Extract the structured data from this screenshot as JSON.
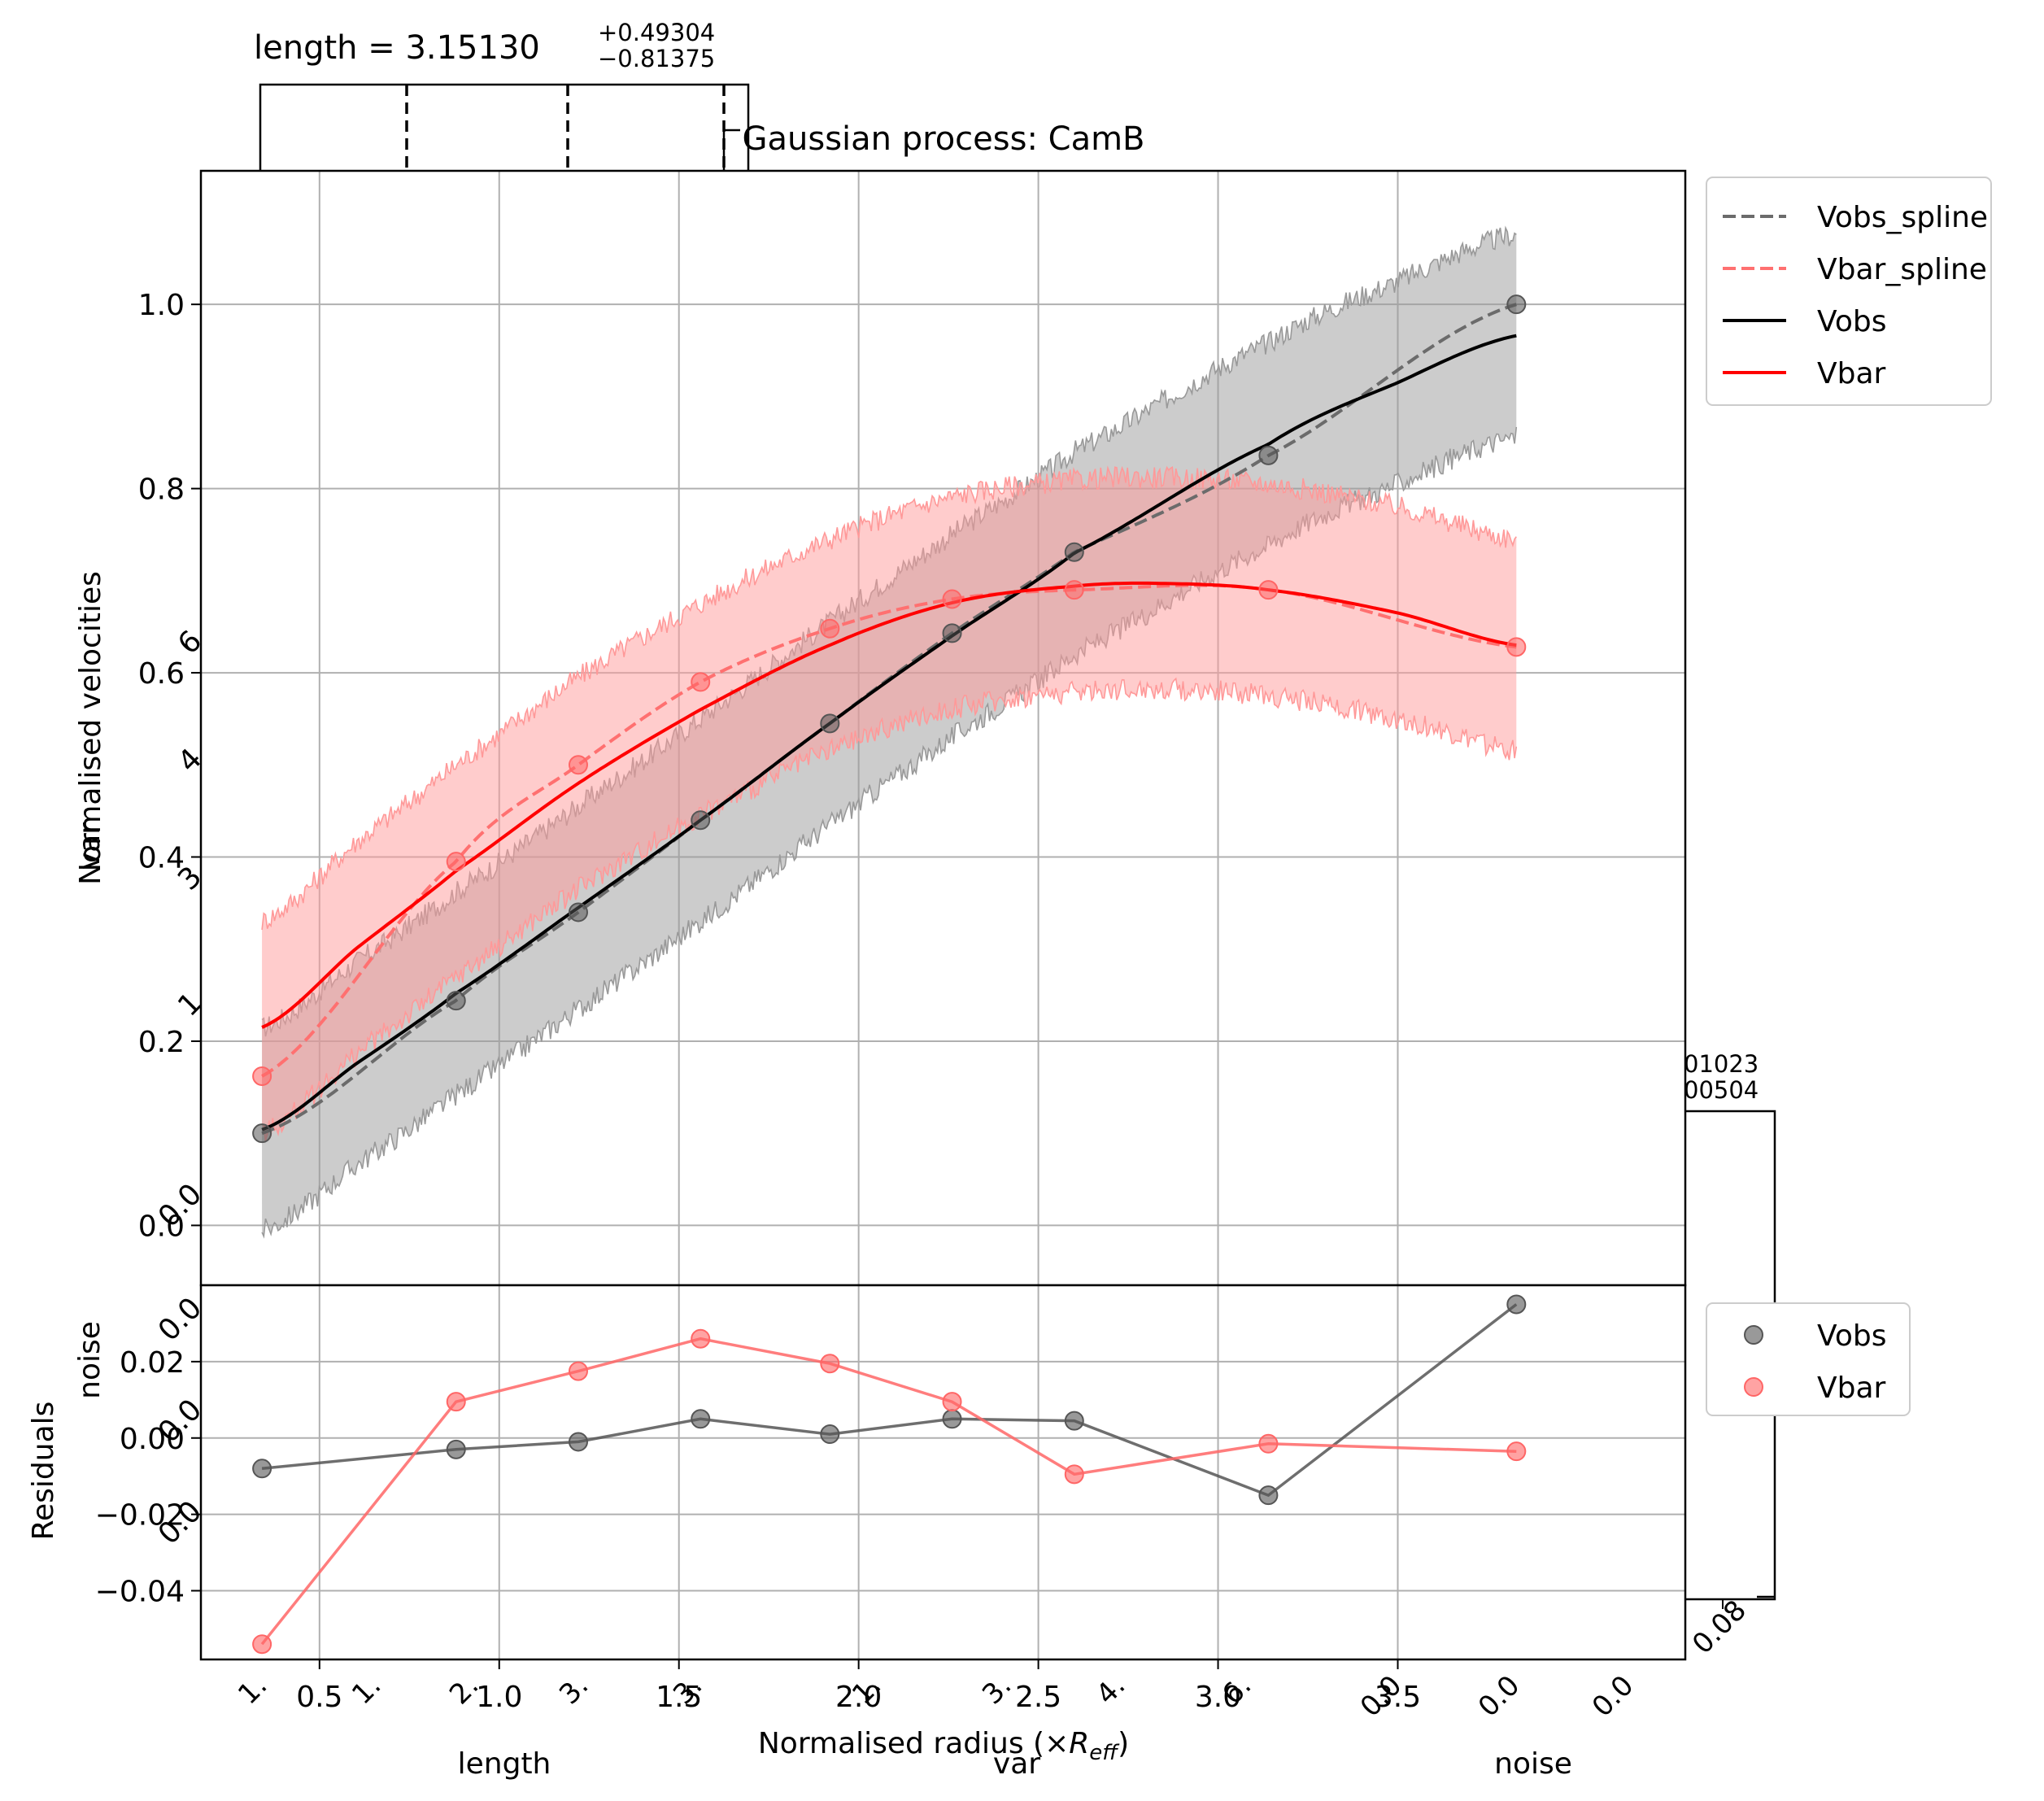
{
  "chart_data": [
    {
      "type": "line",
      "title": "Gaussian process: CamB",
      "xlabel": "",
      "ylabel": "Normalised velocities",
      "xlim": [
        0.17,
        4.3
      ],
      "ylim": [
        -0.065,
        1.145
      ],
      "x_ticks": [
        0.5,
        1.0,
        1.5,
        2.0,
        2.5,
        3.0,
        3.5
      ],
      "y_ticks": [
        0.0,
        0.2,
        0.4,
        0.6,
        0.8,
        1.0
      ],
      "y_tick_labels": [
        "0.0",
        "0.2",
        "0.4",
        "0.6",
        "0.8",
        "1.0"
      ],
      "grid": true,
      "legend_position": "outside-top-right",
      "points_x": [
        0.34,
        0.88,
        1.22,
        1.56,
        1.92,
        2.26,
        2.6,
        3.14,
        3.83
      ],
      "series": [
        {
          "name": "Vobs_spline",
          "style": "dashed",
          "color": "#6b6b6b",
          "values": [
            0.1,
            0.244,
            0.34,
            0.44,
            0.545,
            0.643,
            0.731,
            0.836,
            1.0
          ]
        },
        {
          "name": "Vbar_spline",
          "style": "dashed",
          "color": "#ff7070",
          "values": [
            0.162,
            0.395,
            0.5,
            0.59,
            0.648,
            0.68,
            0.69,
            0.69,
            0.628
          ]
        },
        {
          "name": "Vobs",
          "style": "solid",
          "color": "#000000",
          "x": [
            0.34,
            0.6,
            0.88,
            1.22,
            1.56,
            1.92,
            2.26,
            2.6,
            3.14,
            3.5,
            3.83
          ],
          "values": [
            0.104,
            0.175,
            0.252,
            0.345,
            0.44,
            0.545,
            0.64,
            0.73,
            0.848,
            0.915,
            0.966
          ]
        },
        {
          "name": "Vbar",
          "style": "solid",
          "color": "#ff0000",
          "x": [
            0.34,
            0.6,
            0.88,
            1.22,
            1.56,
            1.92,
            2.26,
            2.6,
            2.85,
            3.14,
            3.5,
            3.83
          ],
          "values": [
            0.215,
            0.3,
            0.385,
            0.48,
            0.56,
            0.63,
            0.676,
            0.694,
            0.697,
            0.69,
            0.665,
            0.63
          ]
        }
      ],
      "bands": [
        {
          "series": "Vobs",
          "color": "#999999",
          "lower_offset": -0.11,
          "upper_offset": 0.11
        },
        {
          "series": "Vbar",
          "color": "#ff9999",
          "lower_offset": -0.115,
          "upper_offset": 0.115
        }
      ]
    },
    {
      "type": "line",
      "xlabel": "Normalised radius (×R_eff)",
      "ylabel": "Residuals",
      "xlim": [
        0.17,
        4.3
      ],
      "ylim": [
        -0.058,
        0.04
      ],
      "y_ticks": [
        -0.04,
        -0.02,
        0.0,
        0.02
      ],
      "y_tick_labels": [
        "−0.04",
        "−0.02",
        "0.00",
        "0.02"
      ],
      "x_tick_labels": [
        "0.5",
        "1.0",
        "1.5",
        "2.0",
        "2.5",
        "3.0",
        "3.5"
      ],
      "grid": true,
      "legend_position": "outside-right",
      "x": [
        0.34,
        0.88,
        1.22,
        1.56,
        1.92,
        2.26,
        2.6,
        3.14,
        3.83
      ],
      "series": [
        {
          "name": "Vobs",
          "color": "#555555",
          "values": [
            -0.008,
            -0.003,
            -0.001,
            0.005,
            0.001,
            0.005,
            0.0045,
            -0.015,
            0.035
          ]
        },
        {
          "name": "Vbar",
          "color": "#ff6666",
          "values": [
            -0.054,
            0.0095,
            0.0175,
            0.026,
            0.0195,
            0.0095,
            -0.0095,
            -0.0015,
            -0.0035
          ]
        }
      ]
    },
    {
      "type": "corner-plot-overlay",
      "title_prefix": "length = 3.15130",
      "title_sup": "+0.49304",
      "title_sub": "−0.81375",
      "quantile_lines": [
        0.3,
        0.63,
        0.95
      ],
      "x_labels": [
        "length",
        "var",
        "noise"
      ],
      "y_labels": [
        "var",
        "noise"
      ],
      "fragments": {
        "right_title_top": "01023",
        "right_title_bottom": "00504",
        "right_tick": "0.08",
        "bottom_ticks": [
          "1.",
          "1.",
          "2.",
          "3.",
          "3.",
          "1.",
          "3.",
          "4.",
          "6.",
          "0.0",
          "0.0",
          "0.0"
        ],
        "left_ticks": [
          "6",
          "4",
          "3",
          "1",
          "0.0",
          "0.0",
          "0.0",
          "0.0"
        ]
      }
    }
  ]
}
